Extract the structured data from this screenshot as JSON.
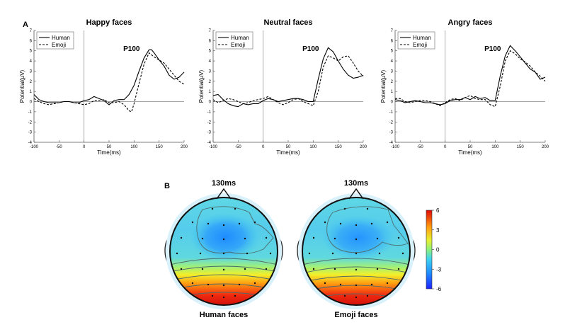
{
  "panel_labels": {
    "a": "A",
    "b": "B"
  },
  "chart_data": [
    {
      "type": "line",
      "title": "Happy faces",
      "annotation": "P100",
      "xlabel": "Time(ms)",
      "ylabel": "Potential(μV)",
      "xlim": [
        -100,
        200
      ],
      "ylim": [
        -4,
        7
      ],
      "xticks": [
        -100,
        -50,
        0,
        50,
        100,
        150,
        200
      ],
      "yticks": [
        -4,
        -3,
        -2,
        -1,
        0,
        1,
        2,
        3,
        4,
        5,
        6,
        7
      ],
      "legend": [
        "Human",
        "Emoji"
      ],
      "legend_position": "top-left",
      "series": [
        {
          "name": "Human",
          "style": "solid",
          "x": [
            -100,
            -90,
            -80,
            -70,
            -60,
            -50,
            -40,
            -30,
            -20,
            -10,
            0,
            10,
            20,
            30,
            40,
            50,
            60,
            70,
            80,
            90,
            100,
            110,
            120,
            130,
            135,
            140,
            150,
            160,
            170,
            180,
            190,
            200
          ],
          "y": [
            0.7,
            0.2,
            0.0,
            -0.1,
            -0.1,
            -0.1,
            0.0,
            0.0,
            -0.1,
            -0.1,
            0.1,
            0.2,
            0.5,
            0.3,
            0.1,
            -0.3,
            0.1,
            0.2,
            0.2,
            0.7,
            1.6,
            3.0,
            4.3,
            5.1,
            5.1,
            4.8,
            4.1,
            3.5,
            2.6,
            2.2,
            2.4,
            2.9
          ]
        },
        {
          "name": "Emoji",
          "style": "dashed",
          "x": [
            -100,
            -90,
            -80,
            -70,
            -60,
            -50,
            -40,
            -30,
            -20,
            -10,
            0,
            10,
            20,
            30,
            40,
            50,
            60,
            70,
            80,
            90,
            95,
            100,
            110,
            120,
            130,
            140,
            150,
            160,
            170,
            180,
            190,
            200
          ],
          "y": [
            0.3,
            0.0,
            -0.2,
            -0.3,
            -0.2,
            -0.1,
            0.0,
            0.0,
            -0.1,
            -0.2,
            -0.3,
            -0.2,
            0.1,
            0.1,
            0.2,
            -0.1,
            -0.1,
            0.0,
            -0.3,
            -0.9,
            -1.0,
            -0.2,
            1.8,
            3.7,
            4.8,
            4.4,
            4.1,
            3.8,
            3.2,
            2.6,
            2.0,
            1.7
          ]
        }
      ]
    },
    {
      "type": "line",
      "title": "Neutral faces",
      "annotation": "P100",
      "xlabel": "Time(ms)",
      "ylabel": "Potential(μV)",
      "xlim": [
        -100,
        200
      ],
      "ylim": [
        -4,
        7
      ],
      "xticks": [
        -100,
        -50,
        0,
        50,
        100,
        150,
        200
      ],
      "yticks": [
        -4,
        -3,
        -2,
        -1,
        0,
        1,
        2,
        3,
        4,
        5,
        6,
        7
      ],
      "legend": [
        "Human",
        "Emoji"
      ],
      "legend_position": "top-left",
      "series": [
        {
          "name": "Human",
          "style": "solid",
          "x": [
            -100,
            -90,
            -80,
            -70,
            -60,
            -50,
            -40,
            -30,
            -20,
            -10,
            0,
            10,
            20,
            30,
            40,
            50,
            60,
            70,
            80,
            90,
            100,
            110,
            120,
            130,
            140,
            150,
            160,
            170,
            180,
            190,
            200
          ],
          "y": [
            0.6,
            0.7,
            0.2,
            -0.2,
            -0.4,
            -0.5,
            -0.2,
            -0.3,
            -0.2,
            -0.2,
            0.1,
            0.3,
            0.2,
            0.0,
            0.1,
            0.2,
            0.3,
            0.3,
            0.2,
            0.0,
            0.0,
            2.2,
            4.2,
            5.3,
            4.9,
            4.0,
            3.2,
            2.6,
            2.3,
            2.4,
            2.6
          ]
        },
        {
          "name": "Emoji",
          "style": "dashed",
          "x": [
            -100,
            -90,
            -80,
            -70,
            -60,
            -50,
            -40,
            -30,
            -20,
            -10,
            0,
            10,
            20,
            30,
            40,
            50,
            60,
            70,
            80,
            90,
            100,
            110,
            120,
            130,
            140,
            150,
            160,
            170,
            180,
            190,
            200
          ],
          "y": [
            0.2,
            -0.1,
            0.1,
            0.3,
            0.2,
            0.0,
            -0.2,
            -0.1,
            0.1,
            0.2,
            0.3,
            0.5,
            0.2,
            -0.1,
            -0.3,
            -0.1,
            0.2,
            0.3,
            0.0,
            -0.2,
            -0.4,
            1.0,
            3.4,
            4.5,
            4.3,
            4.0,
            4.4,
            4.5,
            3.8,
            3.0,
            2.5
          ]
        }
      ]
    },
    {
      "type": "line",
      "title": "Angry faces",
      "annotation": "P100",
      "xlabel": "Time(ms)",
      "ylabel": "Potential(μV)",
      "xlim": [
        -100,
        200
      ],
      "ylim": [
        -4,
        7
      ],
      "xticks": [
        -100,
        -50,
        0,
        50,
        100,
        150,
        200
      ],
      "yticks": [
        -4,
        -3,
        -2,
        -1,
        0,
        1,
        2,
        3,
        4,
        5,
        6,
        7
      ],
      "legend": [
        "Human",
        "Emoji"
      ],
      "legend_position": "top-left",
      "series": [
        {
          "name": "Human",
          "style": "solid",
          "x": [
            -100,
            -90,
            -80,
            -70,
            -60,
            -50,
            -40,
            -30,
            -20,
            -10,
            0,
            10,
            20,
            30,
            40,
            50,
            60,
            70,
            80,
            90,
            100,
            110,
            120,
            130,
            140,
            150,
            160,
            170,
            180,
            190,
            200
          ],
          "y": [
            0.2,
            0.1,
            -0.1,
            0.0,
            0.1,
            0.0,
            -0.1,
            -0.1,
            -0.2,
            -0.3,
            -0.2,
            0.1,
            0.2,
            0.2,
            0.4,
            0.2,
            0.5,
            0.3,
            0.4,
            0.1,
            0.1,
            2.5,
            4.5,
            5.5,
            5.0,
            4.4,
            3.8,
            3.2,
            2.9,
            2.2,
            2.4
          ]
        },
        {
          "name": "Emoji",
          "style": "dashed",
          "x": [
            -100,
            -90,
            -80,
            -70,
            -60,
            -50,
            -40,
            -30,
            -20,
            -10,
            0,
            10,
            20,
            30,
            40,
            50,
            60,
            70,
            80,
            90,
            100,
            110,
            120,
            130,
            140,
            150,
            160,
            170,
            180,
            190,
            200
          ],
          "y": [
            0.3,
            0.3,
            0.0,
            -0.1,
            0.0,
            0.1,
            0.1,
            0.0,
            -0.2,
            -0.4,
            -0.1,
            0.2,
            0.3,
            0.1,
            0.4,
            0.6,
            0.3,
            0.2,
            0.2,
            -0.3,
            -0.5,
            1.5,
            4.0,
            5.0,
            4.7,
            4.2,
            3.9,
            3.5,
            2.9,
            2.5,
            2.0
          ]
        }
      ]
    }
  ],
  "topomaps": {
    "time_label": "130ms",
    "maps": [
      {
        "name": "Human faces",
        "time": "130ms"
      },
      {
        "name": "Emoji faces",
        "time": "130ms"
      }
    ],
    "colorbar": {
      "min": -6,
      "max": 6,
      "ticks": [
        "6",
        "3",
        "0",
        "-3",
        "-6"
      ]
    }
  },
  "colors": {
    "line": "#000000",
    "axis": "#555555",
    "zero_line": "#999999"
  }
}
